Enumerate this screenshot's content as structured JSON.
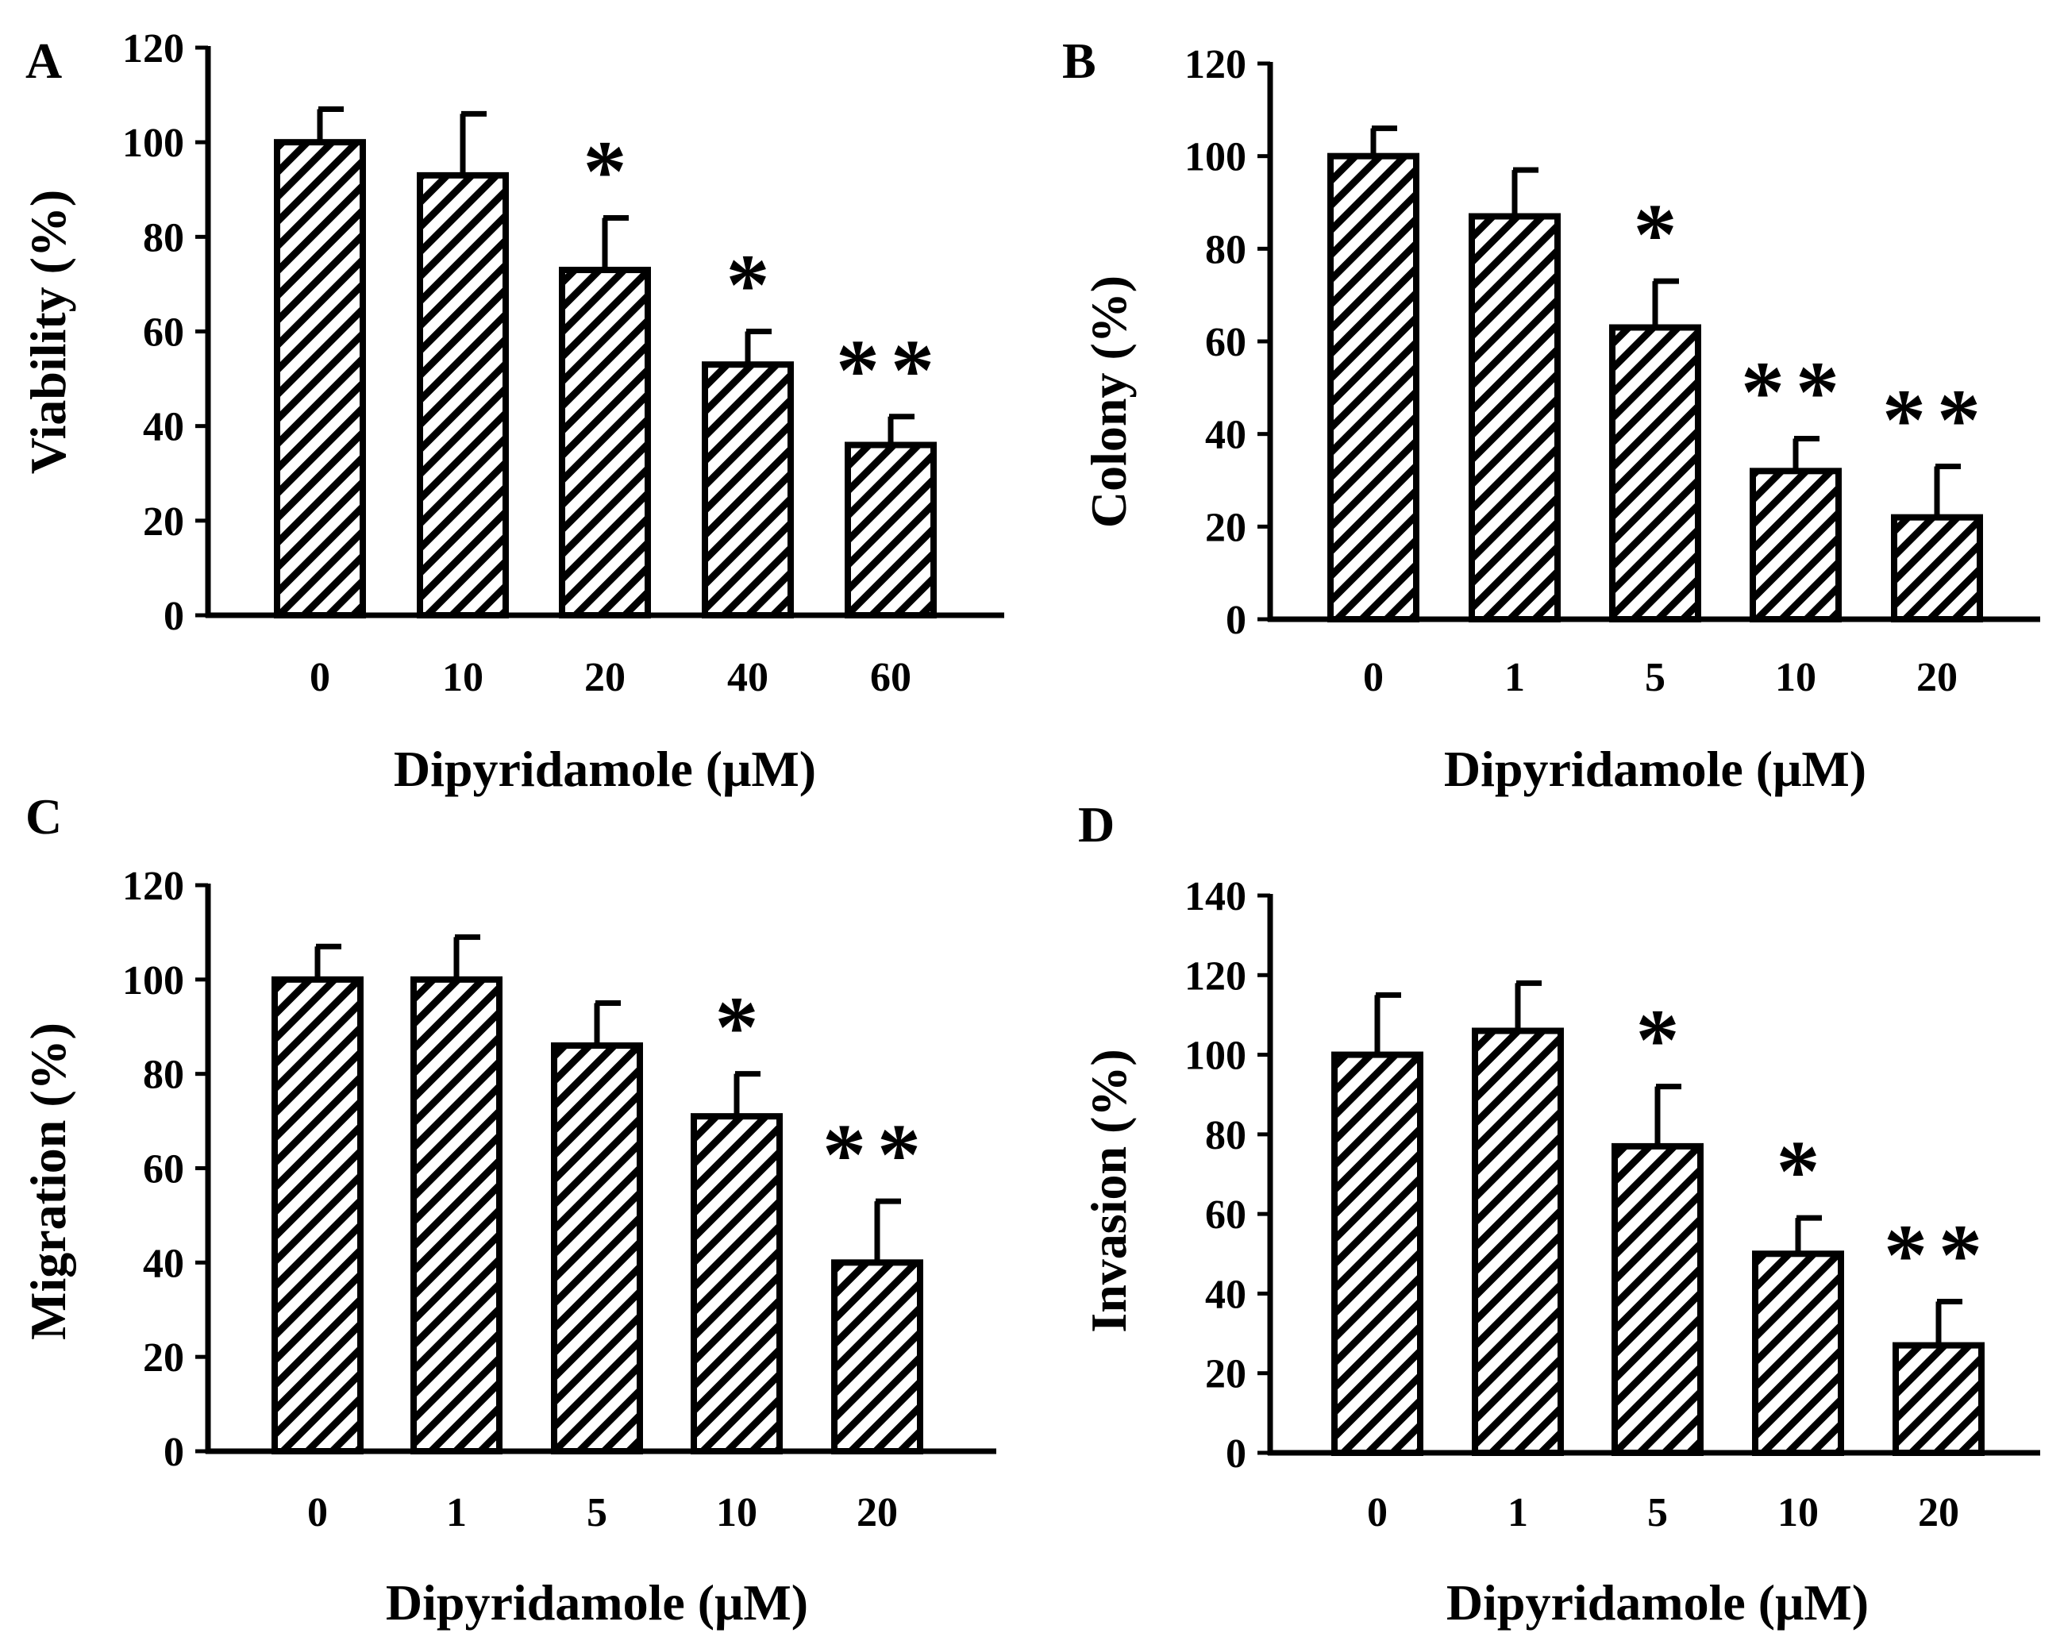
{
  "figure": {
    "colors": {
      "ink": "#000000",
      "bar_fill": "#ffffff",
      "hatch": "#000000"
    }
  },
  "chart_data": [
    {
      "panel": "A",
      "type": "bar",
      "title": "",
      "xlabel": "Dipyridamole (μM)",
      "ylabel": "Viability (%)",
      "categories": [
        "0",
        "10",
        "20",
        "40",
        "60"
      ],
      "values": [
        100,
        93,
        73,
        53,
        36
      ],
      "errors": [
        7,
        13,
        11,
        7,
        6
      ],
      "significance": [
        "",
        "",
        "*",
        "*",
        "**"
      ],
      "ylim": [
        0,
        120
      ],
      "yticks": [
        "0",
        "20",
        "40",
        "60",
        "80",
        "100",
        "120"
      ],
      "grid": false,
      "legend": "none"
    },
    {
      "panel": "B",
      "type": "bar",
      "title": "",
      "xlabel": "Dipyridamole (μM)",
      "ylabel": "Colony (%)",
      "categories": [
        "0",
        "1",
        "5",
        "10",
        "20"
      ],
      "values": [
        100,
        87,
        63,
        32,
        22
      ],
      "errors": [
        6,
        10,
        10,
        7,
        11
      ],
      "significance": [
        "",
        "",
        "*",
        "**",
        "**"
      ],
      "ylim": [
        0,
        120
      ],
      "yticks": [
        "0",
        "20",
        "40",
        "60",
        "80",
        "100",
        "120"
      ],
      "grid": false,
      "legend": "none"
    },
    {
      "panel": "C",
      "type": "bar",
      "title": "",
      "xlabel": "Dipyridamole (μM)",
      "ylabel": "Migration (%)",
      "categories": [
        "0",
        "1",
        "5",
        "10",
        "20"
      ],
      "values": [
        100,
        100,
        86,
        71,
        40
      ],
      "errors": [
        7,
        9,
        9,
        9,
        13
      ],
      "significance": [
        "",
        "",
        "",
        "*",
        "**"
      ],
      "ylim": [
        0,
        120
      ],
      "yticks": [
        "0",
        "20",
        "40",
        "60",
        "80",
        "100",
        "120"
      ],
      "grid": false,
      "legend": "none"
    },
    {
      "panel": "D",
      "type": "bar",
      "title": "",
      "xlabel": "Dipyridamole (μM)",
      "ylabel": "Invasion (%)",
      "categories": [
        "0",
        "1",
        "5",
        "10",
        "20"
      ],
      "values": [
        100,
        106,
        77,
        50,
        27
      ],
      "errors": [
        15,
        12,
        15,
        9,
        11
      ],
      "significance": [
        "",
        "",
        "*",
        "*",
        "**"
      ],
      "ylim": [
        0,
        140
      ],
      "yticks": [
        "0",
        "20",
        "40",
        "60",
        "80",
        "100",
        "120",
        "140"
      ],
      "grid": false,
      "legend": "none"
    }
  ]
}
